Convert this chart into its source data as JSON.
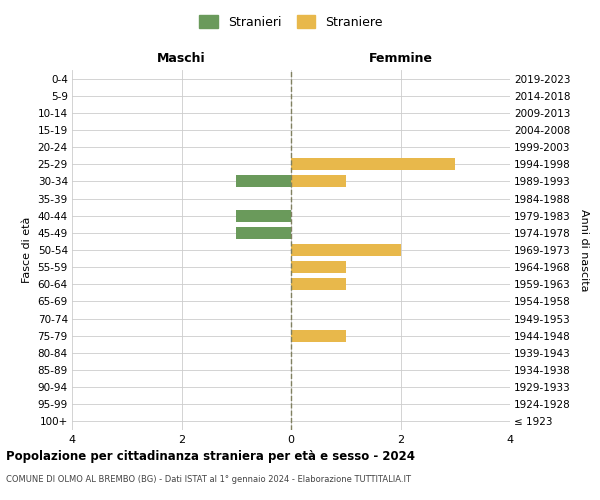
{
  "age_groups": [
    "100+",
    "95-99",
    "90-94",
    "85-89",
    "80-84",
    "75-79",
    "70-74",
    "65-69",
    "60-64",
    "55-59",
    "50-54",
    "45-49",
    "40-44",
    "35-39",
    "30-34",
    "25-29",
    "20-24",
    "15-19",
    "10-14",
    "5-9",
    "0-4"
  ],
  "birth_years": [
    "≤ 1923",
    "1924-1928",
    "1929-1933",
    "1934-1938",
    "1939-1943",
    "1944-1948",
    "1949-1953",
    "1954-1958",
    "1959-1963",
    "1964-1968",
    "1969-1973",
    "1974-1978",
    "1979-1983",
    "1984-1988",
    "1989-1993",
    "1994-1998",
    "1999-2003",
    "2004-2008",
    "2009-2013",
    "2014-2018",
    "2019-2023"
  ],
  "males": [
    0,
    0,
    0,
    0,
    0,
    0,
    0,
    0,
    0,
    0,
    0,
    1,
    1,
    0,
    1,
    0,
    0,
    0,
    0,
    0,
    0
  ],
  "females": [
    0,
    0,
    0,
    0,
    0,
    1,
    0,
    0,
    1,
    1,
    2,
    0,
    0,
    0,
    1,
    3,
    0,
    0,
    0,
    0,
    0
  ],
  "male_color": "#6a9a5b",
  "female_color": "#e8b84b",
  "title": "Popolazione per cittadinanza straniera per età e sesso - 2024",
  "subtitle": "COMUNE DI OLMO AL BREMBO (BG) - Dati ISTAT al 1° gennaio 2024 - Elaborazione TUTTITALIA.IT",
  "header_left": "Maschi",
  "header_right": "Femmine",
  "ylabel_left": "Fasce di età",
  "ylabel_right": "Anni di nascita",
  "legend_male": "Stranieri",
  "legend_female": "Straniere",
  "xlim": 4,
  "background_color": "#ffffff",
  "grid_color": "#cccccc",
  "center_line_color": "#808060"
}
